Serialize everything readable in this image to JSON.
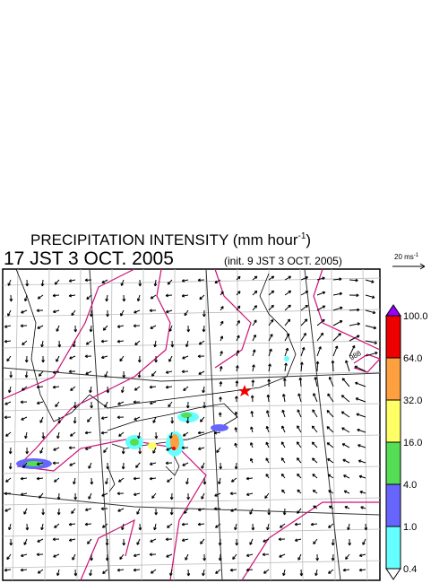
{
  "header": {
    "title": "PRECIPITATION INTENSITY (mm hour",
    "title_exponent": "-1",
    "title_close": ")",
    "valid_time": "17 JST 3 OCT. 2005",
    "init_time": "(init. 9 JST 3 OCT. 2005)"
  },
  "wind_scale": {
    "label": "20 ms",
    "exponent": "-1"
  },
  "map": {
    "contour_label": "988"
  },
  "legend": {
    "levels": [
      "100.0",
      "64.0",
      "32.0",
      "16.0",
      "4.0",
      "1.0",
      "0.4"
    ],
    "colors": [
      "#9900ff",
      "#ee0000",
      "#ffa040",
      "#ffff66",
      "#55dd55",
      "#6666ff",
      "#66ffff",
      "#ffffff"
    ]
  }
}
